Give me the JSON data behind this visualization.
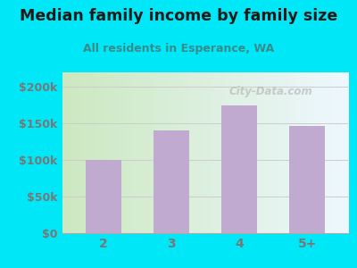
{
  "title": "Median family income by family size",
  "subtitle": "All residents in Esperance, WA",
  "categories": [
    "2",
    "3",
    "4",
    "5+"
  ],
  "values": [
    100000,
    141000,
    175000,
    147000
  ],
  "bar_color": "#c0aad0",
  "title_color": "#1a1a1a",
  "subtitle_color": "#3a8a8a",
  "ytick_color": "#777777",
  "xtick_color": "#777777",
  "background_outer": "#00e8f8",
  "ylim": [
    0,
    220000
  ],
  "yticks": [
    0,
    50000,
    100000,
    150000,
    200000
  ],
  "ytick_labels": [
    "$0",
    "$50k",
    "$100k",
    "$150k",
    "$200k"
  ],
  "watermark": "City-Data.com",
  "grad_left": "#cce8c0",
  "grad_right": "#eef8ff"
}
